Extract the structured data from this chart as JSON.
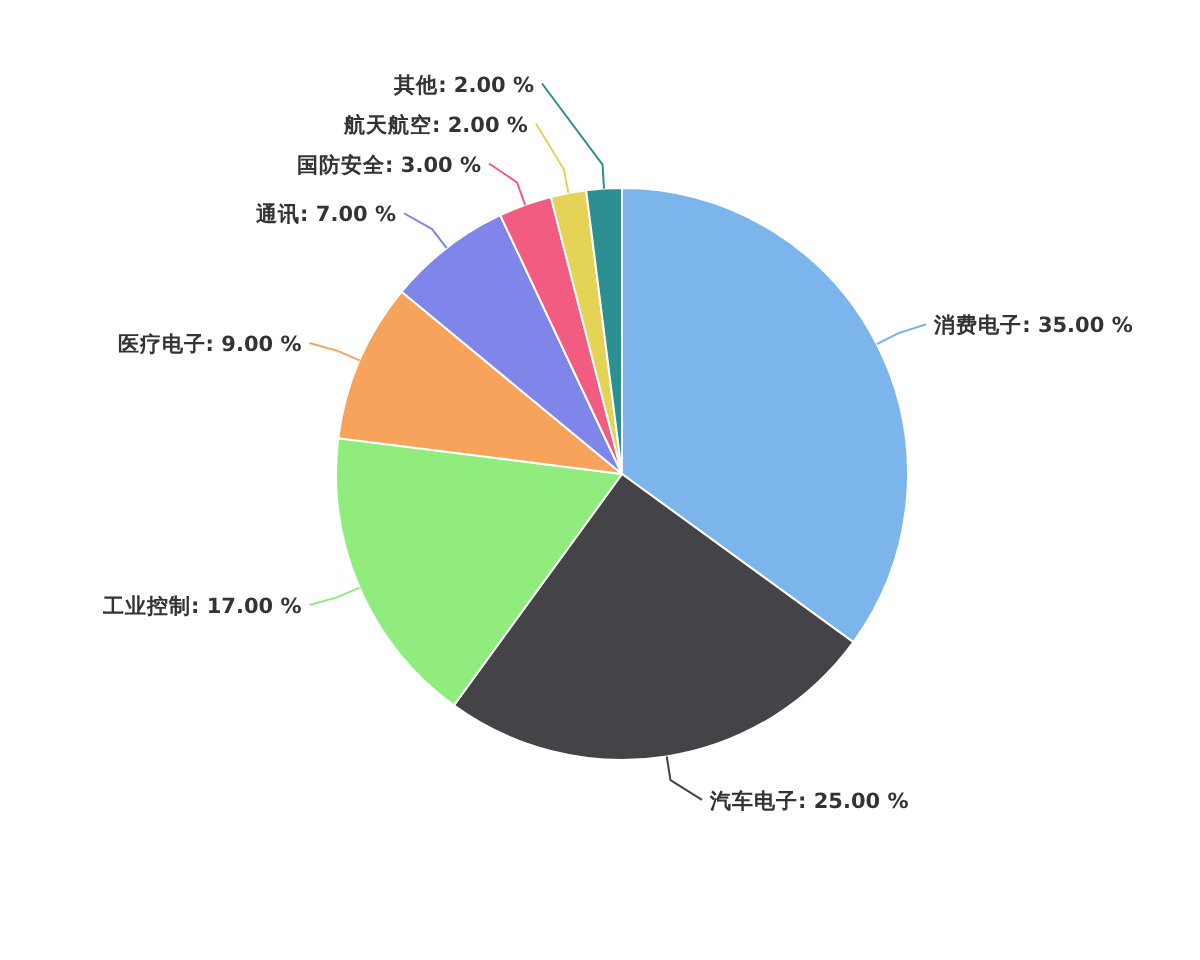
{
  "chart_data": {
    "type": "pie",
    "categories": [
      "消费电子",
      "汽车电子",
      "工业控制",
      "医疗电子",
      "通讯",
      "国防安全",
      "航天航空",
      "其他"
    ],
    "values": [
      35,
      25,
      17,
      9,
      7,
      3,
      2,
      2
    ],
    "value_labels": [
      "35.00 %",
      "25.00 %",
      "17.00 %",
      "9.00 %",
      "7.00 %",
      "3.00 %",
      "2.00 %",
      "2.00 %"
    ],
    "colors": [
      "#7cb5ec",
      "#434348",
      "#90ed7d",
      "#f7a35c",
      "#8085e9",
      "#f15c80",
      "#e4d354",
      "#2b908f"
    ]
  }
}
